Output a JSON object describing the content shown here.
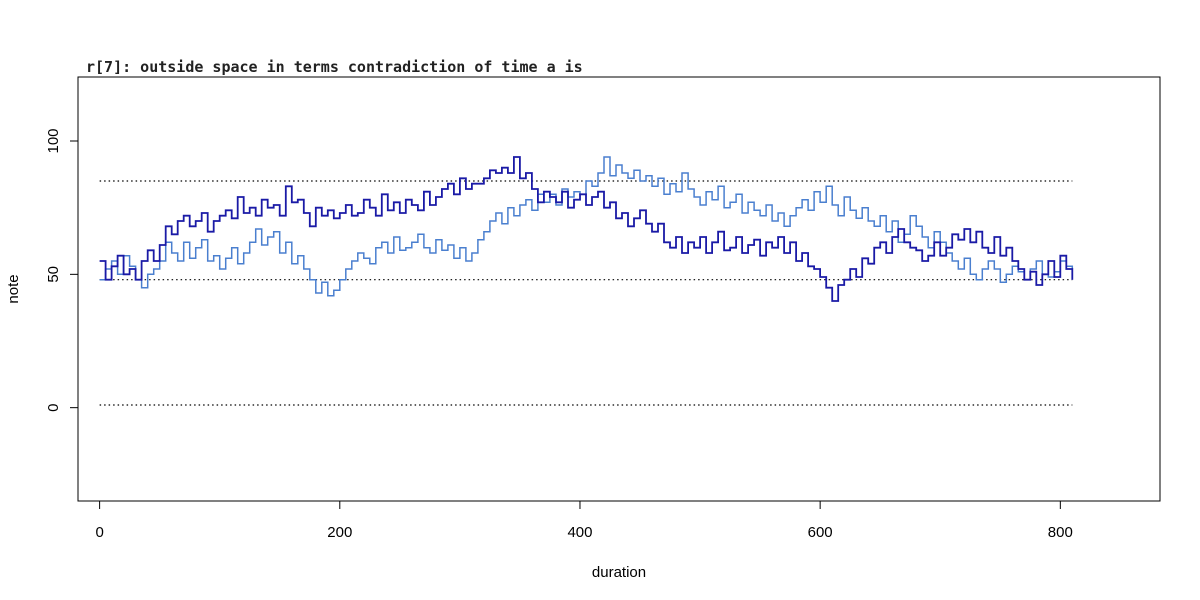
{
  "chart_data": {
    "type": "line",
    "step": true,
    "title": "r[7]: outside space in terms contradiction of time a is",
    "xlabel": "duration",
    "ylabel": "note",
    "xlim": [
      -18,
      883
    ],
    "ylim": [
      -35,
      124
    ],
    "x_ticks": [
      0,
      200,
      400,
      600,
      800
    ],
    "y_ticks": [
      0,
      50,
      100
    ],
    "grid": false,
    "legend": "none",
    "reference_lines": [
      {
        "y": 85,
        "x_range": [
          0,
          810
        ],
        "style": "dotted"
      },
      {
        "y": 48,
        "x_range": [
          0,
          810
        ],
        "style": "dotted"
      },
      {
        "y": 1,
        "x_range": [
          0,
          810
        ],
        "style": "dotted"
      }
    ],
    "series": [
      {
        "color": "#1a1aa6",
        "x": [
          0,
          5,
          10,
          15,
          20,
          25,
          30,
          35,
          40,
          45,
          50,
          55,
          60,
          65,
          70,
          75,
          80,
          85,
          90,
          95,
          100,
          105,
          110,
          115,
          120,
          125,
          130,
          135,
          140,
          145,
          150,
          155,
          160,
          165,
          170,
          175,
          180,
          185,
          190,
          195,
          200,
          205,
          210,
          215,
          220,
          225,
          230,
          235,
          240,
          245,
          250,
          255,
          260,
          265,
          270,
          275,
          280,
          285,
          290,
          295,
          300,
          305,
          310,
          315,
          320,
          325,
          330,
          335,
          340,
          345,
          350,
          355,
          360,
          365,
          370,
          375,
          380,
          385,
          390,
          395,
          400,
          405,
          410,
          415,
          420,
          425,
          430,
          435,
          440,
          445,
          450,
          455,
          460,
          465,
          470,
          475,
          480,
          485,
          490,
          495,
          500,
          505,
          510,
          515,
          520,
          525,
          530,
          535,
          540,
          545,
          550,
          555,
          560,
          565,
          570,
          575,
          580,
          585,
          590,
          595,
          600,
          605,
          610,
          615,
          620,
          625,
          630,
          635,
          640,
          645,
          650,
          655,
          660,
          665,
          670,
          675,
          680,
          685,
          690,
          695,
          700,
          705,
          710,
          715,
          720,
          725,
          730,
          735,
          740,
          745,
          750,
          755,
          760,
          765,
          770,
          775,
          780,
          785,
          790,
          795,
          800,
          805,
          810
        ],
        "y": [
          55,
          48,
          53,
          57,
          50,
          52,
          48,
          55,
          59,
          55,
          61,
          68,
          65,
          70,
          72,
          68,
          70,
          73,
          66,
          70,
          72,
          74,
          71,
          79,
          73,
          75,
          72,
          78,
          75,
          76,
          72,
          83,
          77,
          78,
          73,
          68,
          75,
          72,
          74,
          71,
          73,
          76,
          72,
          73,
          78,
          75,
          72,
          80,
          74,
          77,
          73,
          78,
          76,
          74,
          81,
          76,
          79,
          82,
          84,
          80,
          86,
          82,
          84,
          84,
          86,
          89,
          88,
          90,
          88,
          94,
          86,
          88,
          82,
          77,
          81,
          79,
          77,
          81,
          75,
          78,
          80,
          76,
          79,
          81,
          75,
          77,
          71,
          73,
          68,
          71,
          74,
          69,
          66,
          69,
          62,
          60,
          64,
          58,
          62,
          60,
          64,
          58,
          62,
          66,
          59,
          60,
          64,
          58,
          61,
          63,
          57,
          62,
          60,
          64,
          58,
          62,
          55,
          58,
          53,
          52,
          49,
          45,
          40,
          46,
          48,
          52,
          49,
          56,
          54,
          60,
          62,
          58,
          64,
          67,
          62,
          60,
          59,
          55,
          57,
          62,
          57,
          60,
          65,
          63,
          67,
          62,
          66,
          60,
          58,
          64,
          57,
          60,
          55,
          52,
          48,
          51,
          46,
          50,
          55,
          49,
          57,
          52,
          48
        ]
      },
      {
        "color": "#4a7fcf",
        "x": [
          0,
          5,
          10,
          15,
          20,
          25,
          30,
          35,
          40,
          45,
          50,
          55,
          60,
          65,
          70,
          75,
          80,
          85,
          90,
          95,
          100,
          105,
          110,
          115,
          120,
          125,
          130,
          135,
          140,
          145,
          150,
          155,
          160,
          165,
          170,
          175,
          180,
          185,
          190,
          195,
          200,
          205,
          210,
          215,
          220,
          225,
          230,
          235,
          240,
          245,
          250,
          255,
          260,
          265,
          270,
          275,
          280,
          285,
          290,
          295,
          300,
          305,
          310,
          315,
          320,
          325,
          330,
          335,
          340,
          345,
          350,
          355,
          360,
          365,
          370,
          375,
          380,
          385,
          390,
          395,
          400,
          405,
          410,
          415,
          420,
          425,
          430,
          435,
          440,
          445,
          450,
          455,
          460,
          465,
          470,
          475,
          480,
          485,
          490,
          495,
          500,
          505,
          510,
          515,
          520,
          525,
          530,
          535,
          540,
          545,
          550,
          555,
          560,
          565,
          570,
          575,
          580,
          585,
          590,
          595,
          600,
          605,
          610,
          615,
          620,
          625,
          630,
          635,
          640,
          645,
          650,
          655,
          660,
          665,
          670,
          675,
          680,
          685,
          690,
          695,
          700,
          705,
          710,
          715,
          720,
          725,
          730,
          735,
          740,
          745,
          750,
          755,
          760,
          765,
          770,
          775,
          780,
          785,
          790,
          795,
          800,
          805,
          810
        ],
        "y": [
          48,
          52,
          55,
          50,
          57,
          53,
          48,
          45,
          50,
          52,
          55,
          62,
          58,
          55,
          62,
          56,
          60,
          63,
          55,
          57,
          52,
          56,
          60,
          54,
          58,
          62,
          67,
          61,
          64,
          66,
          58,
          62,
          54,
          57,
          52,
          48,
          43,
          47,
          42,
          44,
          48,
          52,
          55,
          58,
          56,
          54,
          60,
          62,
          58,
          64,
          59,
          60,
          62,
          65,
          60,
          58,
          63,
          59,
          61,
          56,
          60,
          55,
          58,
          63,
          66,
          70,
          73,
          69,
          75,
          72,
          76,
          78,
          74,
          80,
          77,
          80,
          76,
          82,
          79,
          81,
          80,
          85,
          83,
          88,
          94,
          87,
          91,
          88,
          86,
          89,
          85,
          87,
          83,
          86,
          80,
          84,
          81,
          88,
          82,
          79,
          76,
          81,
          78,
          83,
          75,
          77,
          80,
          73,
          77,
          74,
          72,
          76,
          70,
          73,
          68,
          72,
          75,
          78,
          74,
          81,
          77,
          83,
          76,
          72,
          79,
          74,
          71,
          75,
          70,
          68,
          72,
          66,
          70,
          62,
          65,
          72,
          68,
          64,
          60,
          66,
          62,
          58,
          55,
          52,
          56,
          50,
          48,
          52,
          55,
          52,
          47,
          50,
          53,
          51,
          48,
          52,
          55,
          50,
          49,
          51,
          55,
          53,
          52
        ]
      }
    ]
  }
}
